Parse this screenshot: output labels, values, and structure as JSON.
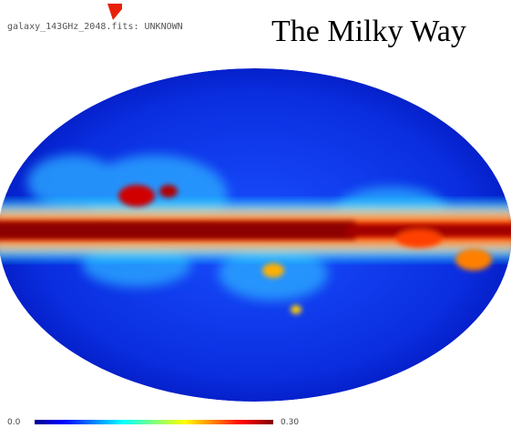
{
  "header": {
    "title": "galaxy_143GHz_2048.fits: UNKNOWN"
  },
  "overlay": {
    "text": "The Milky Way"
  },
  "colorbar": {
    "min_label": "0.0",
    "max_label": "0.30"
  }
}
